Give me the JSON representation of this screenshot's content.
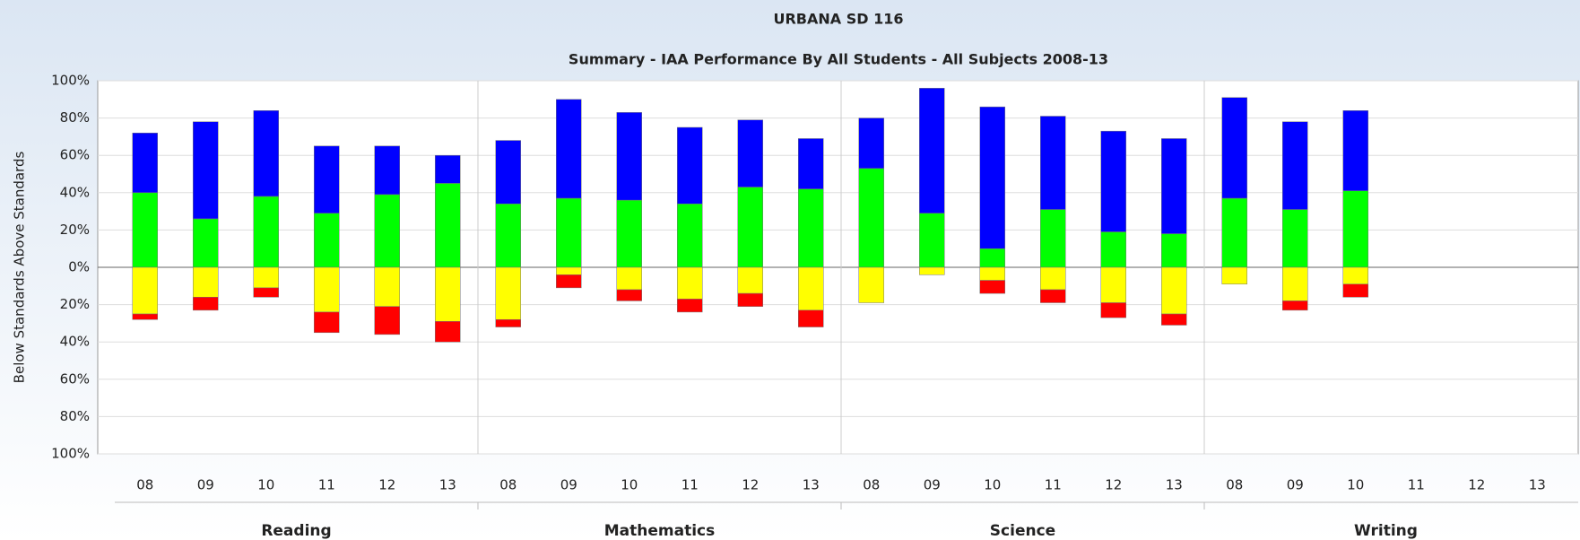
{
  "chart_data": {
    "type": "diverging-stacked-bar",
    "title": "URBANA SD 116",
    "subtitle": "Summary - IAA  Performance By All Students - All Subjects 2008-13",
    "y_label": "Below Standards Above Standards",
    "categories": [
      "08",
      "09",
      "10",
      "11",
      "12",
      "13",
      "08",
      "09",
      "10",
      "11",
      "12",
      "13",
      "08",
      "09",
      "10",
      "11",
      "12",
      "13",
      "08",
      "09",
      "10",
      "11",
      "12",
      "13"
    ],
    "group_labels": [
      "Reading",
      "Mathematics",
      "Science",
      "Writing"
    ],
    "ylim": [
      -100,
      100
    ],
    "yticks": [
      {
        "value": 100,
        "label": "100%"
      },
      {
        "value": 80,
        "label": "80%"
      },
      {
        "value": 60,
        "label": "60%"
      },
      {
        "value": 40,
        "label": "40%"
      },
      {
        "value": 20,
        "label": "20%"
      },
      {
        "value": 0,
        "label": "0%"
      },
      {
        "value": -20,
        "label": "20%"
      },
      {
        "value": -40,
        "label": "40%"
      },
      {
        "value": -60,
        "label": "60%"
      },
      {
        "value": -80,
        "label": "80%"
      },
      {
        "value": -100,
        "label": "100%"
      }
    ],
    "grid": true,
    "series": [
      {
        "color": "#00ff00",
        "side": "above",
        "values": [
          40,
          26,
          38,
          29,
          39,
          45,
          34,
          37,
          36,
          34,
          43,
          42,
          53,
          29,
          10,
          31,
          19,
          18,
          37,
          31,
          41,
          null,
          null,
          null
        ]
      },
      {
        "color": "#0000ff",
        "side": "above",
        "values": [
          32,
          52,
          46,
          36,
          26,
          15,
          34,
          53,
          47,
          41,
          36,
          27,
          27,
          67,
          76,
          50,
          54,
          51,
          54,
          47,
          43,
          null,
          null,
          null
        ]
      },
      {
        "color": "#ffff00",
        "side": "below",
        "values": [
          -25,
          -16,
          -11,
          -24,
          -21,
          -29,
          -28,
          -4,
          -12,
          -17,
          -14,
          -23,
          -19,
          -4,
          -7,
          -12,
          -19,
          -25,
          -9,
          -18,
          -9,
          null,
          null,
          null
        ]
      },
      {
        "color": "#ff0000",
        "side": "below",
        "values": [
          -3,
          -7,
          -5,
          -11,
          -15,
          -11,
          -4,
          -7,
          -6,
          -7,
          -7,
          -9,
          0,
          0,
          -7,
          -7,
          -8,
          -6,
          0,
          -5,
          -7,
          null,
          null,
          null
        ]
      }
    ]
  }
}
